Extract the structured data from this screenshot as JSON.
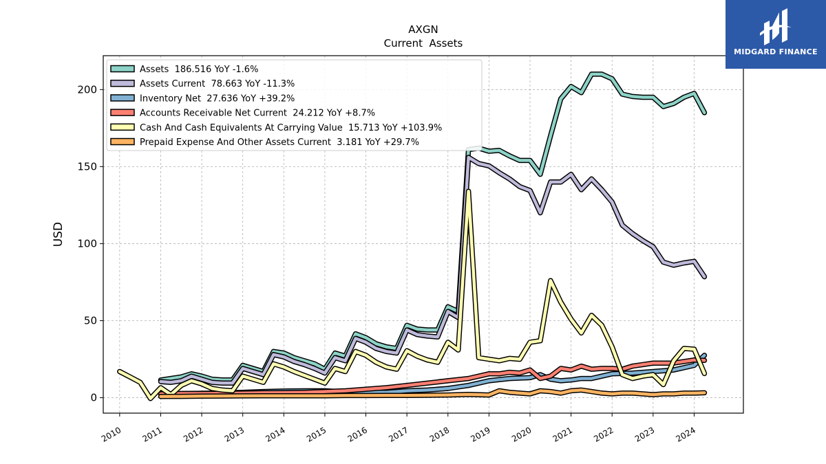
{
  "logo": {
    "text": "MIDGARD FINANCE",
    "color": "#2d5aa8"
  },
  "chart_data": {
    "type": "line",
    "title": "AXGN",
    "subtitle": "Current  Assets",
    "xlabel": "",
    "ylabel": "USD",
    "xlim": [
      2009.6,
      2025.2
    ],
    "ylim": [
      -10,
      222
    ],
    "xticks": [
      "2010",
      "2011",
      "2012",
      "2013",
      "2014",
      "2015",
      "2016",
      "2017",
      "2018",
      "2019",
      "2020",
      "2021",
      "2022",
      "2023",
      "2024"
    ],
    "yticks": [
      0,
      50,
      100,
      150,
      200
    ],
    "grid": true,
    "legend_position": "top-left",
    "series": [
      {
        "name": "Assets  186.516 YoY -1.6%",
        "color": "#8dd3c7",
        "points": [
          [
            2011.0,
            11.5
          ],
          [
            2011.25,
            12.5
          ],
          [
            2011.5,
            13.5
          ],
          [
            2011.75,
            15.5
          ],
          [
            2012.0,
            14
          ],
          [
            2012.25,
            12
          ],
          [
            2012.5,
            11.5
          ],
          [
            2012.75,
            11.5
          ],
          [
            2013.0,
            21
          ],
          [
            2013.25,
            19
          ],
          [
            2013.5,
            17
          ],
          [
            2013.75,
            30
          ],
          [
            2014.0,
            29
          ],
          [
            2014.25,
            26
          ],
          [
            2014.5,
            24
          ],
          [
            2014.75,
            22
          ],
          [
            2015.0,
            18.5
          ],
          [
            2015.25,
            29
          ],
          [
            2015.5,
            27
          ],
          [
            2015.75,
            41.5
          ],
          [
            2016.0,
            39
          ],
          [
            2016.25,
            35
          ],
          [
            2016.5,
            33
          ],
          [
            2016.75,
            32
          ],
          [
            2017.0,
            47
          ],
          [
            2017.25,
            44.5
          ],
          [
            2017.5,
            44
          ],
          [
            2017.75,
            44
          ],
          [
            2018.0,
            59
          ],
          [
            2018.25,
            56
          ],
          [
            2018.5,
            161
          ],
          [
            2018.75,
            162
          ],
          [
            2019.0,
            160
          ],
          [
            2019.25,
            160.5
          ],
          [
            2019.5,
            157
          ],
          [
            2019.75,
            154
          ],
          [
            2020.0,
            154
          ],
          [
            2020.25,
            145
          ],
          [
            2020.5,
            170
          ],
          [
            2020.75,
            194
          ],
          [
            2021.0,
            202
          ],
          [
            2021.25,
            198
          ],
          [
            2021.5,
            210
          ],
          [
            2021.75,
            210
          ],
          [
            2022.0,
            207
          ],
          [
            2022.25,
            197
          ],
          [
            2022.5,
            195.5
          ],
          [
            2022.75,
            195
          ],
          [
            2023.0,
            195
          ],
          [
            2023.25,
            189
          ],
          [
            2023.5,
            191
          ],
          [
            2023.75,
            195
          ],
          [
            2024.0,
            197.5
          ],
          [
            2024.25,
            185
          ]
        ]
      },
      {
        "name": "Assets Current  78.663 YoY -11.3%",
        "color": "#bebada",
        "points": [
          [
            2011.0,
            10.5
          ],
          [
            2011.25,
            10
          ],
          [
            2011.5,
            11
          ],
          [
            2011.75,
            14
          ],
          [
            2012.0,
            12
          ],
          [
            2012.25,
            10
          ],
          [
            2012.5,
            9.5
          ],
          [
            2012.75,
            9.5
          ],
          [
            2013.0,
            19
          ],
          [
            2013.25,
            17
          ],
          [
            2013.5,
            15
          ],
          [
            2013.75,
            28
          ],
          [
            2014.0,
            26.5
          ],
          [
            2014.25,
            23.5
          ],
          [
            2014.5,
            21.5
          ],
          [
            2014.75,
            19
          ],
          [
            2015.0,
            16
          ],
          [
            2015.25,
            26
          ],
          [
            2015.5,
            24
          ],
          [
            2015.75,
            38.5
          ],
          [
            2016.0,
            36
          ],
          [
            2016.25,
            32
          ],
          [
            2016.5,
            30
          ],
          [
            2016.75,
            29
          ],
          [
            2017.0,
            44
          ],
          [
            2017.25,
            41
          ],
          [
            2017.5,
            40
          ],
          [
            2017.75,
            39.5
          ],
          [
            2018.0,
            56
          ],
          [
            2018.25,
            52
          ],
          [
            2018.5,
            156
          ],
          [
            2018.75,
            152
          ],
          [
            2019.0,
            150.5
          ],
          [
            2019.25,
            146
          ],
          [
            2019.5,
            142
          ],
          [
            2019.75,
            137
          ],
          [
            2020.0,
            134.5
          ],
          [
            2020.25,
            120
          ],
          [
            2020.5,
            140
          ],
          [
            2020.75,
            140
          ],
          [
            2021.0,
            145
          ],
          [
            2021.25,
            135
          ],
          [
            2021.5,
            142
          ],
          [
            2021.75,
            135
          ],
          [
            2022.0,
            127
          ],
          [
            2022.25,
            112
          ],
          [
            2022.5,
            106.5
          ],
          [
            2022.75,
            102
          ],
          [
            2023.0,
            98
          ],
          [
            2023.25,
            88
          ],
          [
            2023.5,
            86
          ],
          [
            2023.75,
            87.5
          ],
          [
            2024.0,
            88.5
          ],
          [
            2024.25,
            78.5
          ]
        ]
      },
      {
        "name": "Inventory Net  27.636 YoY +39.2%",
        "color": "#80b1d3",
        "points": [
          [
            2011.0,
            2.5
          ],
          [
            2011.5,
            2.7
          ],
          [
            2012.0,
            2.9
          ],
          [
            2012.5,
            3.1
          ],
          [
            2013.0,
            3.5
          ],
          [
            2013.5,
            4
          ],
          [
            2014.0,
            4.3
          ],
          [
            2014.5,
            4.5
          ],
          [
            2015.0,
            4.5
          ],
          [
            2015.5,
            3.8
          ],
          [
            2016.0,
            3.5
          ],
          [
            2016.5,
            3.5
          ],
          [
            2017.0,
            4.5
          ],
          [
            2017.5,
            5
          ],
          [
            2018.0,
            6
          ],
          [
            2018.5,
            8
          ],
          [
            2019.0,
            11
          ],
          [
            2019.5,
            12.5
          ],
          [
            2020.0,
            13
          ],
          [
            2020.25,
            15
          ],
          [
            2020.5,
            12
          ],
          [
            2020.75,
            11
          ],
          [
            2021.0,
            11.5
          ],
          [
            2021.25,
            12.5
          ],
          [
            2021.5,
            12.5
          ],
          [
            2021.75,
            14
          ],
          [
            2022.0,
            15.5
          ],
          [
            2022.5,
            16
          ],
          [
            2023.0,
            17
          ],
          [
            2023.5,
            18
          ],
          [
            2024.0,
            21
          ],
          [
            2024.25,
            27.5
          ]
        ]
      },
      {
        "name": "Accounts Receivable Net Current  24.212 YoY +8.7%",
        "color": "#fb8072",
        "points": [
          [
            2011.0,
            2.5
          ],
          [
            2011.5,
            2.7
          ],
          [
            2012.0,
            2.7
          ],
          [
            2012.5,
            2.8
          ],
          [
            2013.0,
            3
          ],
          [
            2013.5,
            3.2
          ],
          [
            2014.0,
            3.3
          ],
          [
            2014.5,
            3.5
          ],
          [
            2015.0,
            4
          ],
          [
            2015.5,
            4.5
          ],
          [
            2016.0,
            5.5
          ],
          [
            2016.5,
            6.5
          ],
          [
            2017.0,
            8
          ],
          [
            2017.5,
            9.5
          ],
          [
            2018.0,
            11
          ],
          [
            2018.5,
            12.5
          ],
          [
            2019.0,
            15.5
          ],
          [
            2019.25,
            15.5
          ],
          [
            2019.5,
            16.5
          ],
          [
            2019.75,
            16
          ],
          [
            2020.0,
            18
          ],
          [
            2020.25,
            12.5
          ],
          [
            2020.5,
            14
          ],
          [
            2020.75,
            19
          ],
          [
            2021.0,
            18
          ],
          [
            2021.25,
            20.5
          ],
          [
            2021.5,
            18.5
          ],
          [
            2021.75,
            19
          ],
          [
            2022.0,
            19
          ],
          [
            2022.25,
            18.5
          ],
          [
            2022.5,
            20.5
          ],
          [
            2022.75,
            21.5
          ],
          [
            2023.0,
            22.5
          ],
          [
            2023.5,
            22.5
          ],
          [
            2024.0,
            24.5
          ],
          [
            2024.25,
            24.2
          ]
        ]
      },
      {
        "name": "Cash And Cash Equivalents At Carrying Value  15.713 YoY +103.9%",
        "color": "#ffffb3",
        "points": [
          [
            2010.0,
            17
          ],
          [
            2010.25,
            13.5
          ],
          [
            2010.5,
            10
          ],
          [
            2010.75,
            -0.5
          ],
          [
            2011.0,
            6.5
          ],
          [
            2011.25,
            2
          ],
          [
            2011.5,
            8
          ],
          [
            2011.75,
            11
          ],
          [
            2012.0,
            9
          ],
          [
            2012.25,
            6
          ],
          [
            2012.5,
            5
          ],
          [
            2012.75,
            4.5
          ],
          [
            2013.0,
            14
          ],
          [
            2013.25,
            12
          ],
          [
            2013.5,
            10
          ],
          [
            2013.75,
            22
          ],
          [
            2014.0,
            20
          ],
          [
            2014.25,
            17
          ],
          [
            2014.5,
            14.5
          ],
          [
            2014.75,
            12
          ],
          [
            2015.0,
            9.5
          ],
          [
            2015.25,
            19
          ],
          [
            2015.5,
            17
          ],
          [
            2015.75,
            30
          ],
          [
            2016.0,
            27.5
          ],
          [
            2016.25,
            23
          ],
          [
            2016.5,
            20
          ],
          [
            2016.75,
            18.5
          ],
          [
            2017.0,
            30.5
          ],
          [
            2017.25,
            27
          ],
          [
            2017.5,
            24.5
          ],
          [
            2017.75,
            23
          ],
          [
            2018.0,
            36
          ],
          [
            2018.25,
            31
          ],
          [
            2018.5,
            134
          ],
          [
            2018.75,
            26
          ],
          [
            2019.0,
            25
          ],
          [
            2019.25,
            24
          ],
          [
            2019.5,
            25.5
          ],
          [
            2019.75,
            25
          ],
          [
            2020.0,
            36
          ],
          [
            2020.25,
            37
          ],
          [
            2020.5,
            76
          ],
          [
            2020.75,
            62
          ],
          [
            2021.0,
            51
          ],
          [
            2021.25,
            42
          ],
          [
            2021.5,
            53.5
          ],
          [
            2021.75,
            47
          ],
          [
            2022.0,
            33
          ],
          [
            2022.25,
            15
          ],
          [
            2022.5,
            12.5
          ],
          [
            2022.75,
            14
          ],
          [
            2023.0,
            15
          ],
          [
            2023.25,
            8.5
          ],
          [
            2023.5,
            24
          ],
          [
            2023.75,
            32
          ],
          [
            2024.0,
            31.5
          ],
          [
            2024.25,
            15.7
          ]
        ]
      },
      {
        "name": "Prepaid Expense And Other Assets Current  3.181 YoY +29.7%",
        "color": "#fdb462",
        "points": [
          [
            2011.0,
            0.8
          ],
          [
            2011.5,
            0.9
          ],
          [
            2012.0,
            1
          ],
          [
            2012.5,
            1.1
          ],
          [
            2013.0,
            1.2
          ],
          [
            2013.5,
            1.3
          ],
          [
            2014.0,
            1.3
          ],
          [
            2014.5,
            1.3
          ],
          [
            2015.0,
            1.3
          ],
          [
            2015.5,
            1.4
          ],
          [
            2016.0,
            1.4
          ],
          [
            2016.5,
            1.5
          ],
          [
            2017.0,
            1.5
          ],
          [
            2017.5,
            1.6
          ],
          [
            2018.0,
            1.8
          ],
          [
            2018.5,
            2.2
          ],
          [
            2019.0,
            1.8
          ],
          [
            2019.25,
            4.5
          ],
          [
            2019.5,
            3.5
          ],
          [
            2019.75,
            3
          ],
          [
            2020.0,
            2.5
          ],
          [
            2020.25,
            4.5
          ],
          [
            2020.5,
            4
          ],
          [
            2020.75,
            3
          ],
          [
            2021.0,
            4.5
          ],
          [
            2021.25,
            5
          ],
          [
            2021.5,
            4
          ],
          [
            2021.75,
            3
          ],
          [
            2022.0,
            2.5
          ],
          [
            2022.25,
            3
          ],
          [
            2022.5,
            3
          ],
          [
            2022.75,
            2.5
          ],
          [
            2023.0,
            2
          ],
          [
            2023.25,
            2.5
          ],
          [
            2023.5,
            2.5
          ],
          [
            2023.75,
            3
          ],
          [
            2024.0,
            3
          ],
          [
            2024.25,
            3.2
          ]
        ]
      }
    ]
  }
}
